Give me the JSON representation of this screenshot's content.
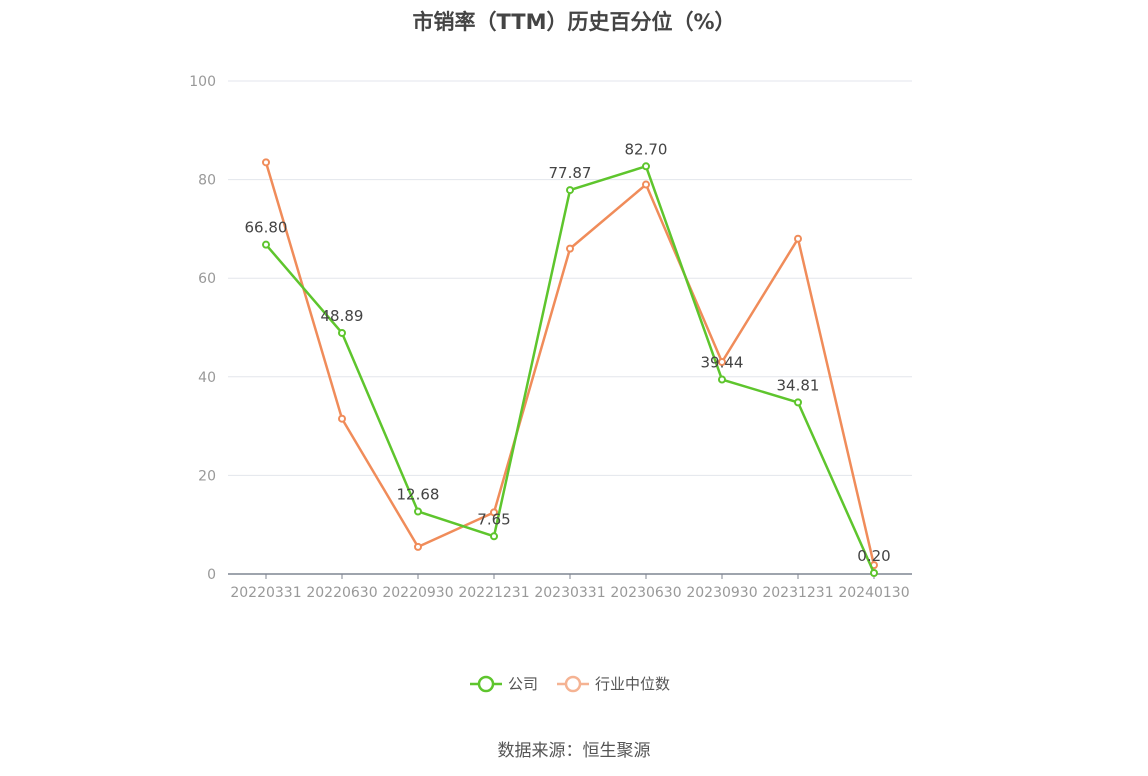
{
  "title": "市销率（TTM）历史百分位（%）",
  "source": "数据来源：恒生聚源",
  "chart_data": {
    "type": "line",
    "categories": [
      "20220331",
      "20220630",
      "20220930",
      "20221231",
      "20230331",
      "20230630",
      "20230930",
      "20231231",
      "20240130"
    ],
    "ylim": [
      0,
      100
    ],
    "yticks": [
      0,
      20,
      40,
      60,
      80,
      100
    ],
    "grid": true,
    "legend_position": "bottom",
    "series": [
      {
        "name": "公司",
        "color": "#5ec52d",
        "values": [
          66.8,
          48.89,
          12.68,
          7.65,
          77.87,
          82.7,
          39.44,
          34.81,
          0.2
        ],
        "labels": [
          "66.80",
          "48.89",
          "12.68",
          "7.65",
          "77.87",
          "82.70",
          "39.44",
          "34.81",
          "0.20"
        ]
      },
      {
        "name": "行业中位数",
        "color": "#f08c5a",
        "legend_color": "#f5b393",
        "values": [
          83.5,
          31.5,
          5.5,
          12.5,
          66.0,
          79.0,
          43.0,
          68.0,
          1.8
        ]
      }
    ]
  }
}
